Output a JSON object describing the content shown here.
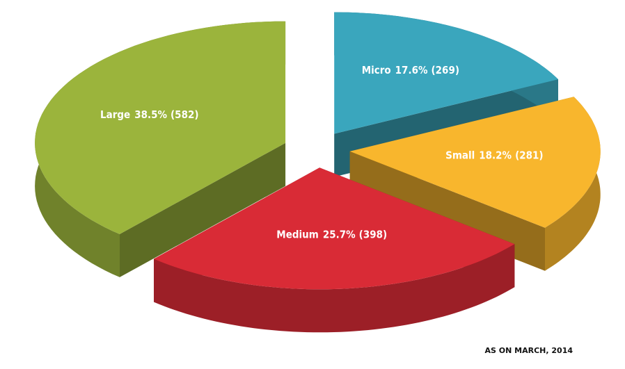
{
  "chart_data": {
    "type": "pie",
    "categories": [
      "Micro",
      "Small",
      "Medium",
      "Large"
    ],
    "values": [
      17.6,
      18.2,
      25.7,
      38.5
    ],
    "value_labels": [
      "17.6%",
      "18.2%",
      "25.7%",
      "38.5%"
    ],
    "counts": [
      269,
      281,
      398,
      582
    ],
    "count_labels": [
      "(269)",
      "(281)",
      "(398)",
      "(582)"
    ],
    "colors": [
      "#3aa6bd",
      "#f8b62d",
      "#d92b36",
      "#9bb43c"
    ],
    "annotation": "AS ON MARCH, 2014"
  }
}
